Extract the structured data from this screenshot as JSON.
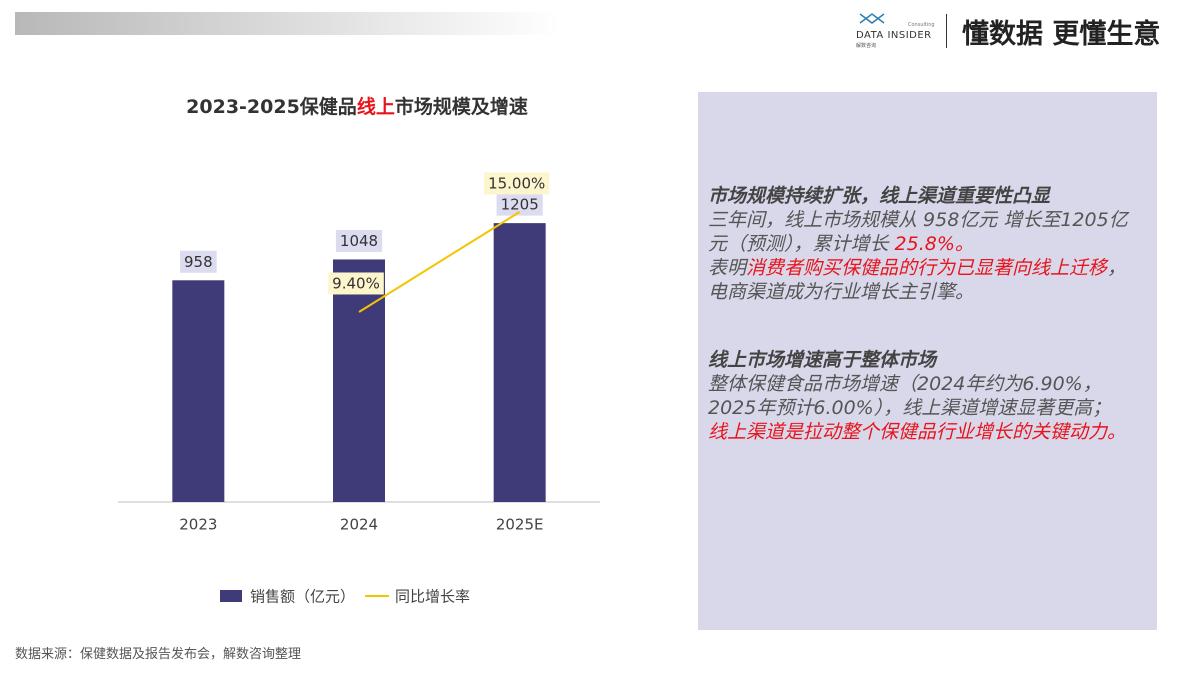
{
  "header": {
    "logo": "DATA INSIDER",
    "logo_sub": "解数咨询",
    "logo_tag": "Consulting",
    "tagline": "懂数据 更懂生意"
  },
  "chart_data": {
    "type": "bar-line",
    "title": [
      "2023-2025保健品",
      "线上",
      "市场规模及增速"
    ],
    "title_highlight_color": "#e8141b",
    "categories": [
      "2023",
      "2024",
      "2025E"
    ],
    "series": [
      {
        "name": "销售额（亿元）",
        "type": "bar",
        "color": "#3f3b78",
        "values": [
          958,
          1048,
          1205
        ]
      },
      {
        "name": "同比增长率",
        "type": "line",
        "axis": "y2",
        "color": "#f5c400",
        "values": [
          null,
          9.4,
          15.0
        ],
        "value_labels": [
          null,
          "9.40%",
          "15.00%"
        ]
      }
    ],
    "ylim": [
      0,
      1400
    ],
    "y2lim": [
      0,
      16
    ],
    "legend": "bottom",
    "grid": false
  },
  "panel": {
    "sections": [
      {
        "heading": "市场规模持续扩张，线上渠道重要性凸显",
        "paragraphs": [
          [
            {
              "text": "三年间，线上市场规模从 958亿元 增长至1205亿元（预测），累计增长 ",
              "highlight": false
            },
            {
              "text": "25.8%。",
              "highlight": true
            }
          ],
          [
            {
              "text": "表明",
              "highlight": false
            },
            {
              "text": "消费者购买保健品的行为已显著向线上迁移",
              "highlight": true
            },
            {
              "text": "，电商渠道成为行业增长主引擎。",
              "highlight": false
            }
          ]
        ]
      },
      {
        "heading": "线上市场增速高于整体市场",
        "paragraphs": [
          [
            {
              "text": "整体保健食品市场增速（2024年约为6.90%，2025年预计6.00%），线上渠道增速显著更高；",
              "highlight": false
            }
          ],
          [
            {
              "text": "线上渠道是拉动整个保健品行业增长的关键动力。",
              "highlight": true
            }
          ]
        ]
      }
    ]
  },
  "source": "数据来源：保健数据及报告发布会，解数咨询整理"
}
